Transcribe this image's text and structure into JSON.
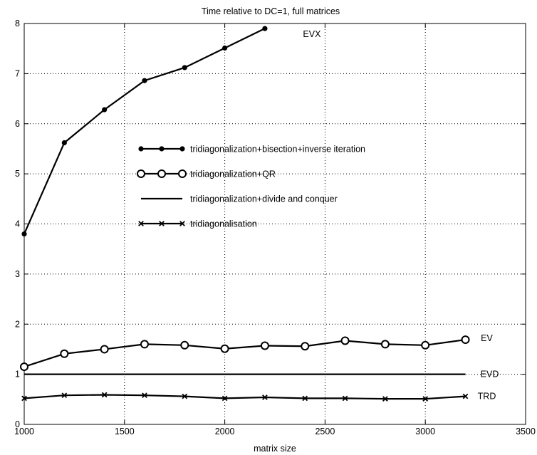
{
  "chart_data": {
    "type": "line",
    "title": "Time relative to DC=1, full matrices",
    "xlabel": "matrix size",
    "ylabel": "",
    "xlim": [
      1000,
      3500
    ],
    "ylim": [
      0,
      8
    ],
    "xticks": [
      1000,
      1500,
      2000,
      2500,
      3000,
      3500
    ],
    "yticks": [
      0,
      1,
      2,
      3,
      4,
      5,
      6,
      7,
      8
    ],
    "grid": true,
    "legend_position": "center",
    "series": [
      {
        "name": "tridiagonalization+bisection+inverse iteration",
        "label": "EVX",
        "marker": "star",
        "x": [
          1000,
          1200,
          1400,
          1600,
          1800,
          2000,
          2200
        ],
        "y": [
          3.8,
          5.62,
          6.28,
          6.86,
          7.12,
          7.51,
          7.9
        ]
      },
      {
        "name": "tridiagonalization+QR",
        "label": "EV",
        "marker": "circle",
        "x": [
          1000,
          1200,
          1400,
          1600,
          1800,
          2000,
          2200,
          2400,
          2600,
          2800,
          3000,
          3200
        ],
        "y": [
          1.15,
          1.41,
          1.5,
          1.6,
          1.58,
          1.51,
          1.57,
          1.56,
          1.67,
          1.6,
          1.58,
          1.69
        ]
      },
      {
        "name": "tridiagonalization+divide and conquer",
        "label": "EVD",
        "marker": "none",
        "x": [
          1000,
          3200
        ],
        "y": [
          1.0,
          1.0
        ]
      },
      {
        "name": "tridiagonalisation",
        "label": "TRD",
        "marker": "x",
        "x": [
          1000,
          1200,
          1400,
          1600,
          1800,
          2000,
          2200,
          2400,
          2600,
          2800,
          3000,
          3200
        ],
        "y": [
          0.52,
          0.58,
          0.59,
          0.58,
          0.56,
          0.52,
          0.54,
          0.52,
          0.52,
          0.51,
          0.51,
          0.56
        ]
      }
    ]
  }
}
